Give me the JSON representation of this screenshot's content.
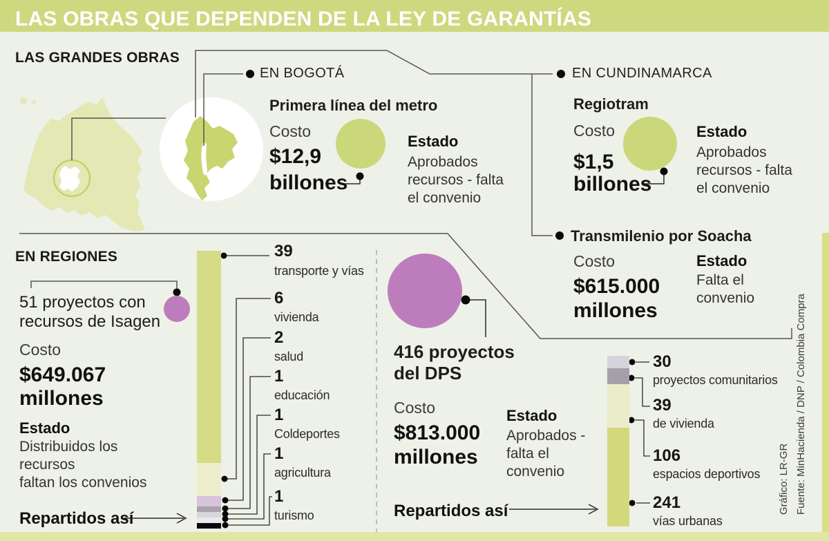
{
  "title": "LAS OBRAS QUE DEPENDEN DE LA LEY DE GARANTÍAS",
  "colors": {
    "title_band": "#ced87f",
    "background": "#eef1e7",
    "bubble_green": "#cbd77b",
    "bubble_purple": "#bd7dbc",
    "map_country": "#e4e8b5",
    "map_region": "#c9d56f",
    "map_circle_stroke": "#c5d169",
    "bottom_band": "#e2e6a4",
    "right_strip": "#d9df85",
    "connector": "#55554d"
  },
  "sections": {
    "grandes_obras": {
      "heading": "LAS GRANDES OBRAS",
      "bogota": {
        "region_label": "EN BOGOTÁ",
        "project": "Primera línea del metro",
        "cost_label": "Costo",
        "cost_value": "$12,9",
        "cost_unit": "billones",
        "status_label": "Estado",
        "status_lines": [
          "Aprobados",
          "recursos - falta",
          "el convenio"
        ]
      },
      "cundinamarca": {
        "region_label": "EN CUNDINAMARCA",
        "project": "Regiotram",
        "cost_label": "Costo",
        "cost_value": "$1,5",
        "cost_unit": "billones",
        "status_label": "Estado",
        "status_lines": [
          "Aprobados",
          "recursos - falta",
          "el convenio"
        ]
      },
      "soacha": {
        "project": "Transmilenio por Soacha",
        "cost_label": "Costo",
        "cost_value": "$615.000",
        "cost_unit": "millones",
        "status_label": "Estado",
        "status_lines": [
          "Falta el",
          "convenio"
        ]
      }
    },
    "regiones": {
      "heading": "EN REGIONES",
      "isagen": {
        "project_lines": [
          "51 proyectos con",
          "recursos de Isagen"
        ],
        "cost_label": "Costo",
        "cost_value": "$649.067",
        "cost_unit": "millones",
        "status_label": "Estado",
        "status_lines": [
          "Distribuidos los",
          "recursos",
          "faltan los convenios"
        ],
        "distribution_label": "Repartidos así"
      },
      "dps": {
        "project_lines": [
          "416 proyectos",
          "del DPS"
        ],
        "cost_label": "Costo",
        "cost_value": "$813.000",
        "cost_unit": "millones",
        "status_label": "Estado",
        "status_lines": [
          "Aprobados -",
          "falta el",
          "convenio"
        ],
        "distribution_label": "Repartidos así"
      }
    }
  },
  "credits": {
    "grafico": "Gráfico: LR-GR",
    "fuente": "Fuente: MinHacienda / DNP / Colombia Compra"
  },
  "chart_data": [
    {
      "type": "bar",
      "title": "51 proyectos con recursos de Isagen — Repartidos así",
      "orientation": "vertical-stacked",
      "total": 51,
      "segments": [
        {
          "label": "transporte y vías",
          "value": 39,
          "color": "#d6db85"
        },
        {
          "label": "vivienda",
          "value": 6,
          "color": "#ebedcb"
        },
        {
          "label": "salud",
          "value": 2,
          "color": "#d8c2dc"
        },
        {
          "label": "educación",
          "value": 1,
          "color": "#a8a3ad"
        },
        {
          "label": "Coldeportes",
          "value": 1,
          "color": "#d9d7dd"
        },
        {
          "label": "agricultura",
          "value": 1,
          "color": "#eae9ee"
        },
        {
          "label": "turismo",
          "value": 1,
          "color": "#0a0a0a"
        }
      ]
    },
    {
      "type": "bar",
      "title": "416 proyectos del DPS — Repartidos así",
      "orientation": "vertical-stacked",
      "total": 416,
      "segments": [
        {
          "label": "proyectos comunitarios",
          "value": 30,
          "color": "#d6d4da"
        },
        {
          "label": "de vivienda",
          "value": 39,
          "color": "#a49fa9"
        },
        {
          "label": "espacios deportivos",
          "value": 106,
          "color": "#eaecca"
        },
        {
          "label": "vías urbanas",
          "value": 241,
          "color": "#d3d97c"
        }
      ]
    }
  ]
}
